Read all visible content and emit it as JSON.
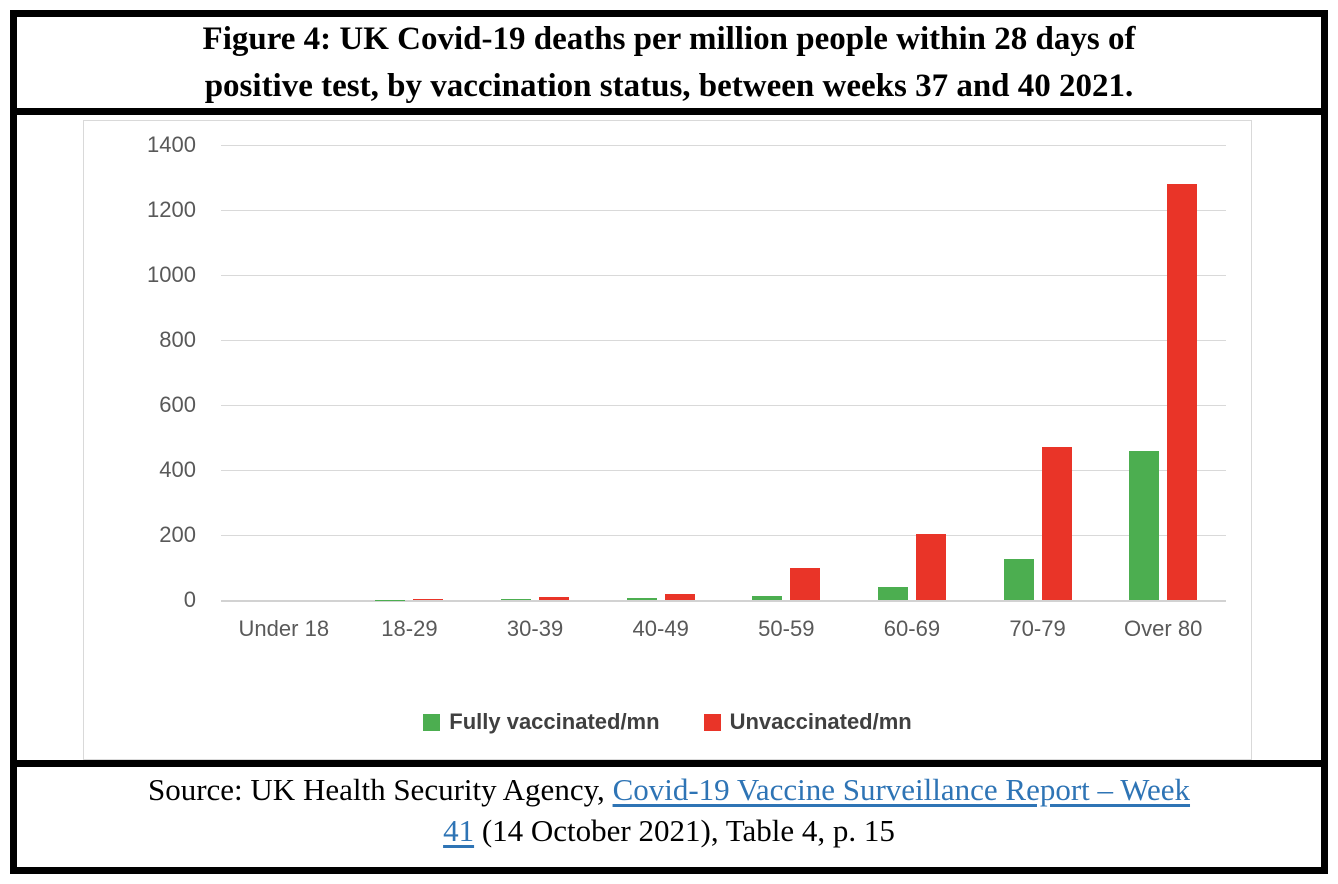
{
  "figure": {
    "title_lines": [
      "Figure 4: UK Covid-19 deaths per million people within 28 days of",
      "positive test, by vaccination status, between weeks 37 and 40 2021."
    ]
  },
  "source": {
    "prefix": "Source: UK Health Security Agency, ",
    "link_line1": "Covid-19 Vaccine Surveillance Report – Week",
    "link_line2": "41",
    "suffix": " (14 October 2021), Table 4, p. 15",
    "link_color": "#2e74b5"
  },
  "chart_data": {
    "type": "bar",
    "title": "Figure 4: UK Covid-19 deaths per million people within 28 days of positive test, by vaccination status, between weeks 37 and 40 2021.",
    "categories": [
      "Under 18",
      "18-29",
      "30-39",
      "40-49",
      "50-59",
      "60-69",
      "70-79",
      "Over 80"
    ],
    "series": [
      {
        "name": "Fully vaccinated/mn",
        "color": "#4cae50",
        "values": [
          0,
          1,
          2,
          5,
          12,
          40,
          126,
          460
        ]
      },
      {
        "name": "Unvaccinated/mn",
        "color": "#e93428",
        "values": [
          0,
          3,
          8,
          20,
          98,
          202,
          472,
          1281
        ]
      }
    ],
    "xlabel": "",
    "ylabel": "",
    "ylim": [
      0,
      1400
    ],
    "yticks": [
      0,
      200,
      400,
      600,
      800,
      1000,
      1200,
      1400
    ],
    "grid": true,
    "legend_position": "bottom",
    "colors": {
      "gridline": "#d9d9d9",
      "axis_label": "#595959",
      "legend_text": "#404040",
      "border": "#000000",
      "panel_border": "#d9d9d9"
    }
  }
}
